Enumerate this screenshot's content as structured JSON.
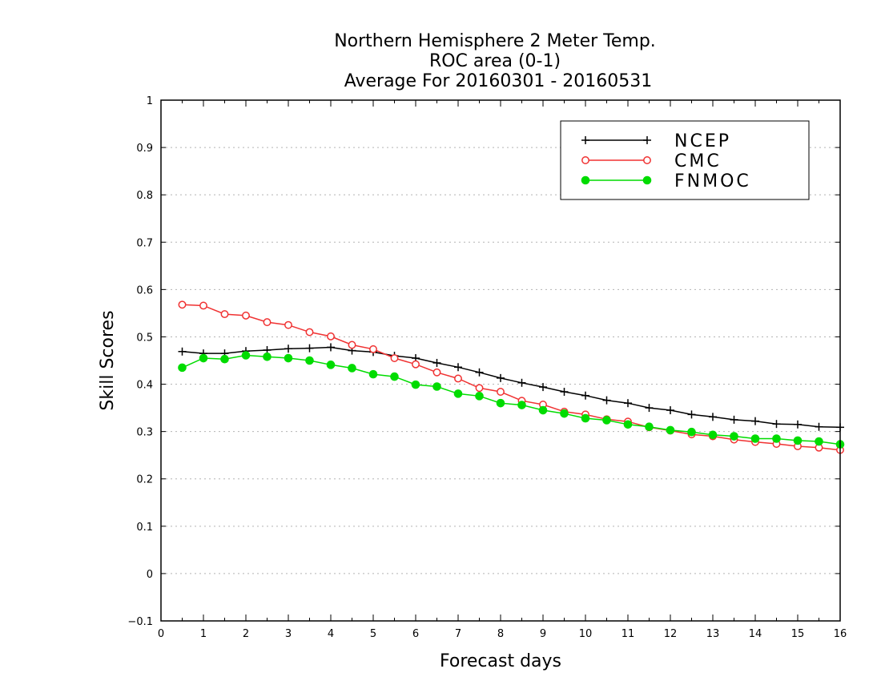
{
  "chart_data": {
    "type": "line",
    "title": [
      "Northern Hemisphere 2 Meter Temp.",
      "ROC area (0-1)",
      "Average For 20160301 - 20160531"
    ],
    "xlabel": "Forecast days",
    "ylabel": "Skill Scores",
    "xlim": [
      0,
      16
    ],
    "ylim": [
      -0.1,
      1
    ],
    "xticks": [
      0,
      1,
      2,
      3,
      4,
      5,
      6,
      7,
      8,
      9,
      10,
      11,
      12,
      13,
      14,
      15,
      16
    ],
    "yticks": [
      -0.1,
      0,
      0.1,
      0.2,
      0.3,
      0.4,
      0.5,
      0.6,
      0.7,
      0.8,
      0.9,
      1
    ],
    "ytick_labels": [
      "−0.1",
      "0",
      "0.1",
      "0.2",
      "0.3",
      "0.4",
      "0.5",
      "0.6",
      "0.7",
      "0.8",
      "0.9",
      "1"
    ],
    "grid": "horizontal-dotted",
    "legend_position": "top-right",
    "x": [
      0.5,
      1,
      1.5,
      2,
      2.5,
      3,
      3.5,
      4,
      4.5,
      5,
      5.5,
      6,
      6.5,
      7,
      7.5,
      8,
      8.5,
      9,
      9.5,
      10,
      10.5,
      11,
      11.5,
      12,
      12.5,
      13,
      13.5,
      14,
      14.5,
      15,
      15.5,
      16
    ],
    "series": [
      {
        "name": "NCEP",
        "color": "#000000",
        "marker": "plus",
        "values": [
          0.469,
          0.465,
          0.465,
          0.47,
          0.472,
          0.475,
          0.476,
          0.478,
          0.471,
          0.468,
          0.46,
          0.455,
          0.445,
          0.436,
          0.425,
          0.413,
          0.403,
          0.394,
          0.384,
          0.376,
          0.366,
          0.36,
          0.35,
          0.345,
          0.336,
          0.331,
          0.325,
          0.322,
          0.316,
          0.315,
          0.31,
          0.309
        ]
      },
      {
        "name": "CMC",
        "color": "#f03232",
        "marker": "open-circle",
        "values": [
          0.568,
          0.566,
          0.548,
          0.545,
          0.531,
          0.525,
          0.51,
          0.501,
          0.483,
          0.474,
          0.455,
          0.442,
          0.425,
          0.412,
          0.392,
          0.384,
          0.365,
          0.357,
          0.342,
          0.336,
          0.326,
          0.321,
          0.309,
          0.302,
          0.294,
          0.29,
          0.283,
          0.278,
          0.274,
          0.269,
          0.266,
          0.261
        ]
      },
      {
        "name": "FNMOC",
        "color": "#00dc00",
        "marker": "filled-circle",
        "values": [
          0.435,
          0.455,
          0.453,
          0.461,
          0.458,
          0.455,
          0.45,
          0.441,
          0.434,
          0.421,
          0.416,
          0.399,
          0.395,
          0.38,
          0.375,
          0.36,
          0.356,
          0.345,
          0.338,
          0.328,
          0.324,
          0.315,
          0.31,
          0.303,
          0.299,
          0.293,
          0.29,
          0.285,
          0.285,
          0.281,
          0.279,
          0.273
        ]
      }
    ]
  }
}
